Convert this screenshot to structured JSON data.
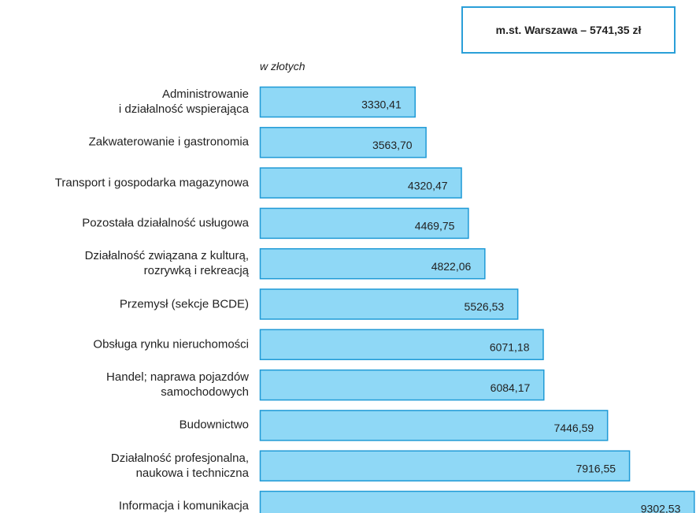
{
  "chart_data": {
    "type": "bar",
    "orientation": "horizontal",
    "annotation": "m.st. Warszawa – 5741,35 zł",
    "unit_label": "w złotych",
    "categories": [
      "Administrowanie\ni działalność wspierająca",
      "Zakwaterowanie i gastronomia",
      "Transport i gospodarka magazynowa",
      "Pozostała działalność usługowa",
      "Działalność związana z kulturą,\nrozrywką i rekreacją",
      "Przemysł (sekcje BCDE)",
      "Obsługa rynku nieruchomości",
      "Handel; naprawa pojazdów\nsamochodowych",
      "Budownictwo",
      "Działalność profesjonalna,\nnaukowa i techniczna",
      "Informacja i komunikacja"
    ],
    "values": [
      3330.41,
      3563.7,
      4320.47,
      4469.75,
      4822.06,
      5526.53,
      6071.18,
      6084.17,
      7446.59,
      7916.55,
      9302.53
    ],
    "value_labels": [
      "3330,41",
      "3563,70",
      "4320,47",
      "4469,75",
      "4822,06",
      "5526,53",
      "6071,18",
      "6084,17",
      "7446,59",
      "7916,55",
      "9302,53"
    ],
    "color": "#8fd8f6",
    "edge_color": "#1f9ad6",
    "xlim": [
      0,
      9330
    ]
  }
}
